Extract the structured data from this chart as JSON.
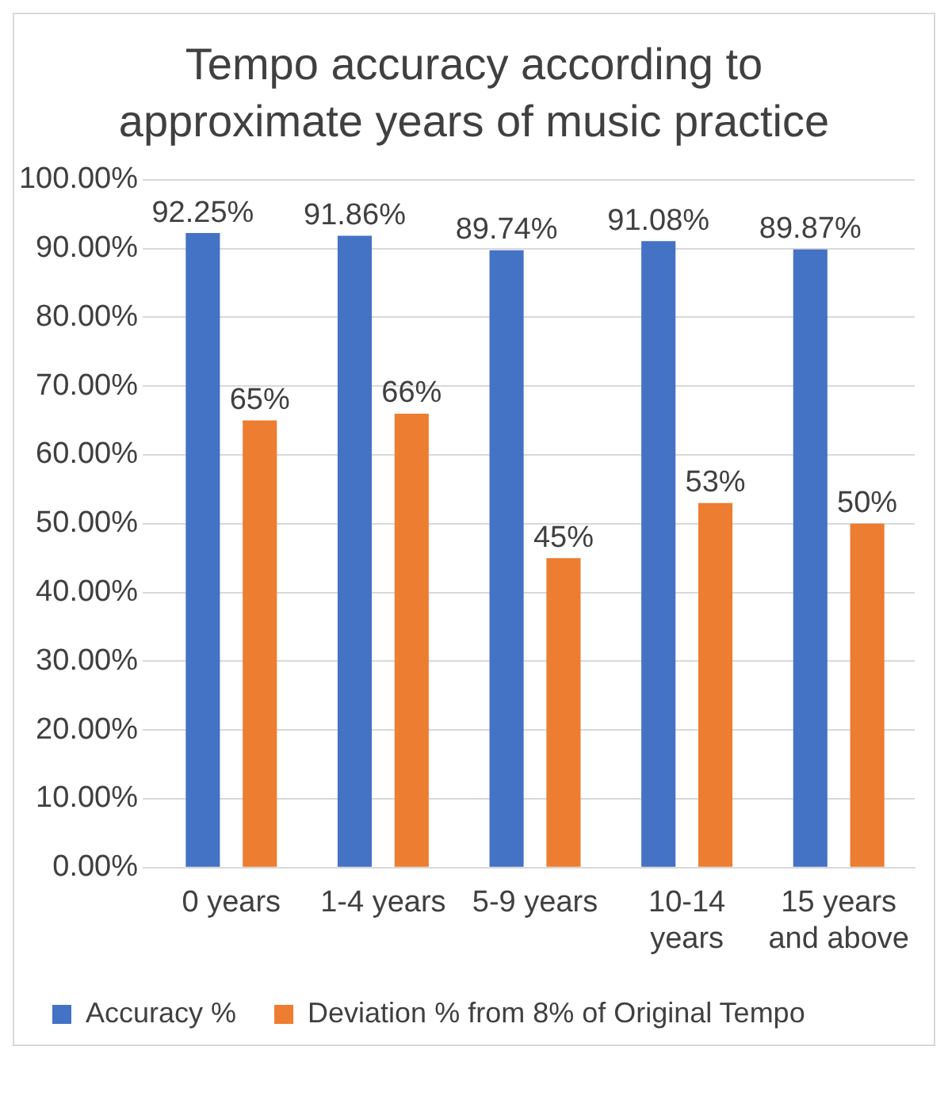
{
  "chart_data": {
    "type": "bar",
    "title": "Tempo accuracy according to approximate years of music practice",
    "categories": [
      "0 years",
      "1-4 years",
      "5-9 years",
      "10-14 years",
      "15 years and above"
    ],
    "series": [
      {
        "name": "Accuracy %",
        "color": "#4472c4",
        "values": [
          92.25,
          91.86,
          89.74,
          91.08,
          89.87
        ],
        "value_labels": [
          "92.25%",
          "91.86%",
          "89.74%",
          "91.08%",
          "89.87%"
        ]
      },
      {
        "name": "Deviation % from 8% of Original Tempo",
        "color": "#ed7d31",
        "values": [
          65,
          66,
          45,
          53,
          50
        ],
        "value_labels": [
          "65%",
          "66%",
          "45%",
          "53%",
          "50%"
        ]
      }
    ],
    "ylim": [
      0,
      100
    ],
    "yticks": [
      {
        "value": 0,
        "label": "0.00%"
      },
      {
        "value": 10,
        "label": "10.00%"
      },
      {
        "value": 20,
        "label": "20.00%"
      },
      {
        "value": 30,
        "label": "30.00%"
      },
      {
        "value": 40,
        "label": "40.00%"
      },
      {
        "value": 50,
        "label": "50.00%"
      },
      {
        "value": 60,
        "label": "60.00%"
      },
      {
        "value": 70,
        "label": "70.00%"
      },
      {
        "value": 80,
        "label": "80.00%"
      },
      {
        "value": 90,
        "label": "90.00%"
      },
      {
        "value": 100,
        "label": "100.00%"
      }
    ],
    "grid": "y",
    "legend": "bottom"
  }
}
